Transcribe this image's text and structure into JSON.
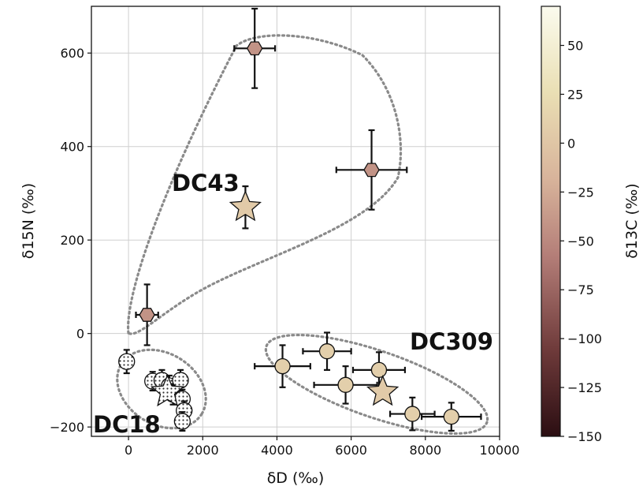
{
  "chart_data": {
    "type": "scatter",
    "title": "",
    "xlabel": "δD (‰)",
    "ylabel": "δ15N (‰)",
    "xlim": [
      -1000,
      10000
    ],
    "ylim": [
      -220,
      700
    ],
    "grid": true,
    "x_ticks": [
      0,
      2000,
      4000,
      6000,
      8000,
      10000
    ],
    "y_ticks": [
      -200,
      0,
      200,
      400,
      600
    ],
    "colorbar": {
      "label": "δ13C (‰)",
      "range": [
        -150,
        70
      ],
      "ticks": [
        50,
        25,
        0,
        -25,
        -50,
        -75,
        -100,
        -125,
        -150
      ],
      "colors": [
        "#2b0e12",
        "#6e3a3a",
        "#b47e78",
        "#d8b49b",
        "#eadfb4",
        "#fbfbee"
      ]
    },
    "groups": [
      {
        "label": "DC43",
        "hull": true
      },
      {
        "label": "DC309",
        "hull": true
      },
      {
        "label": "DC18",
        "hull": true
      }
    ],
    "series": [
      {
        "group": "DC43",
        "marker": "hexagon",
        "points": [
          {
            "x": 3400,
            "y": 610,
            "xerr": 550,
            "yerr": 85,
            "c": -45
          },
          {
            "x": 6550,
            "y": 350,
            "xerr": 950,
            "yerr": 85,
            "c": -45
          },
          {
            "x": 500,
            "y": 40,
            "xerr": 300,
            "yerr": 65,
            "c": -45
          }
        ]
      },
      {
        "group": "DC43",
        "marker": "star",
        "points": [
          {
            "x": 3150,
            "y": 270,
            "xerr": 0,
            "yerr": 45,
            "c": 5
          }
        ]
      },
      {
        "group": "DC309",
        "marker": "circle",
        "points": [
          {
            "x": 4150,
            "y": -70,
            "xerr": 750,
            "yerr": 45,
            "c": 10
          },
          {
            "x": 5350,
            "y": -38,
            "xerr": 650,
            "yerr": 40,
            "c": 10
          },
          {
            "x": 5850,
            "y": -110,
            "xerr": 850,
            "yerr": 40,
            "c": 10
          },
          {
            "x": 6750,
            "y": -78,
            "xerr": 700,
            "yerr": 38,
            "c": 10
          },
          {
            "x": 7650,
            "y": -172,
            "xerr": 600,
            "yerr": 35,
            "c": 10
          },
          {
            "x": 8700,
            "y": -178,
            "xerr": 800,
            "yerr": 30,
            "c": 10
          }
        ]
      },
      {
        "group": "DC309",
        "marker": "star",
        "points": [
          {
            "x": 6850,
            "y": -125,
            "xerr": 0,
            "yerr": 0,
            "c": 5
          }
        ]
      },
      {
        "group": "DC18",
        "marker": "dotted-circle",
        "points": [
          {
            "x": -50,
            "y": -60,
            "xerr": 0,
            "yerr": 25,
            "c": 60
          },
          {
            "x": 650,
            "y": -102,
            "xerr": 0,
            "yerr": 20,
            "c": 60
          },
          {
            "x": 900,
            "y": -100,
            "xerr": 0,
            "yerr": 22,
            "c": 60
          },
          {
            "x": 1100,
            "y": -112,
            "xerr": 0,
            "yerr": 22,
            "c": 60
          },
          {
            "x": 1200,
            "y": -130,
            "xerr": 0,
            "yerr": 22,
            "c": 60
          },
          {
            "x": 1400,
            "y": -100,
            "xerr": 0,
            "yerr": 22,
            "c": 60
          },
          {
            "x": 1450,
            "y": -140,
            "xerr": 0,
            "yerr": 20,
            "c": 60
          },
          {
            "x": 1500,
            "y": -165,
            "xerr": 0,
            "yerr": 20,
            "c": 60
          },
          {
            "x": 1450,
            "y": -188,
            "xerr": 0,
            "yerr": 20,
            "c": 60
          }
        ]
      },
      {
        "group": "DC18",
        "marker": "dotted-star",
        "points": [
          {
            "x": 1050,
            "y": -125,
            "xerr": 0,
            "yerr": 0,
            "c": 60
          }
        ]
      }
    ]
  }
}
